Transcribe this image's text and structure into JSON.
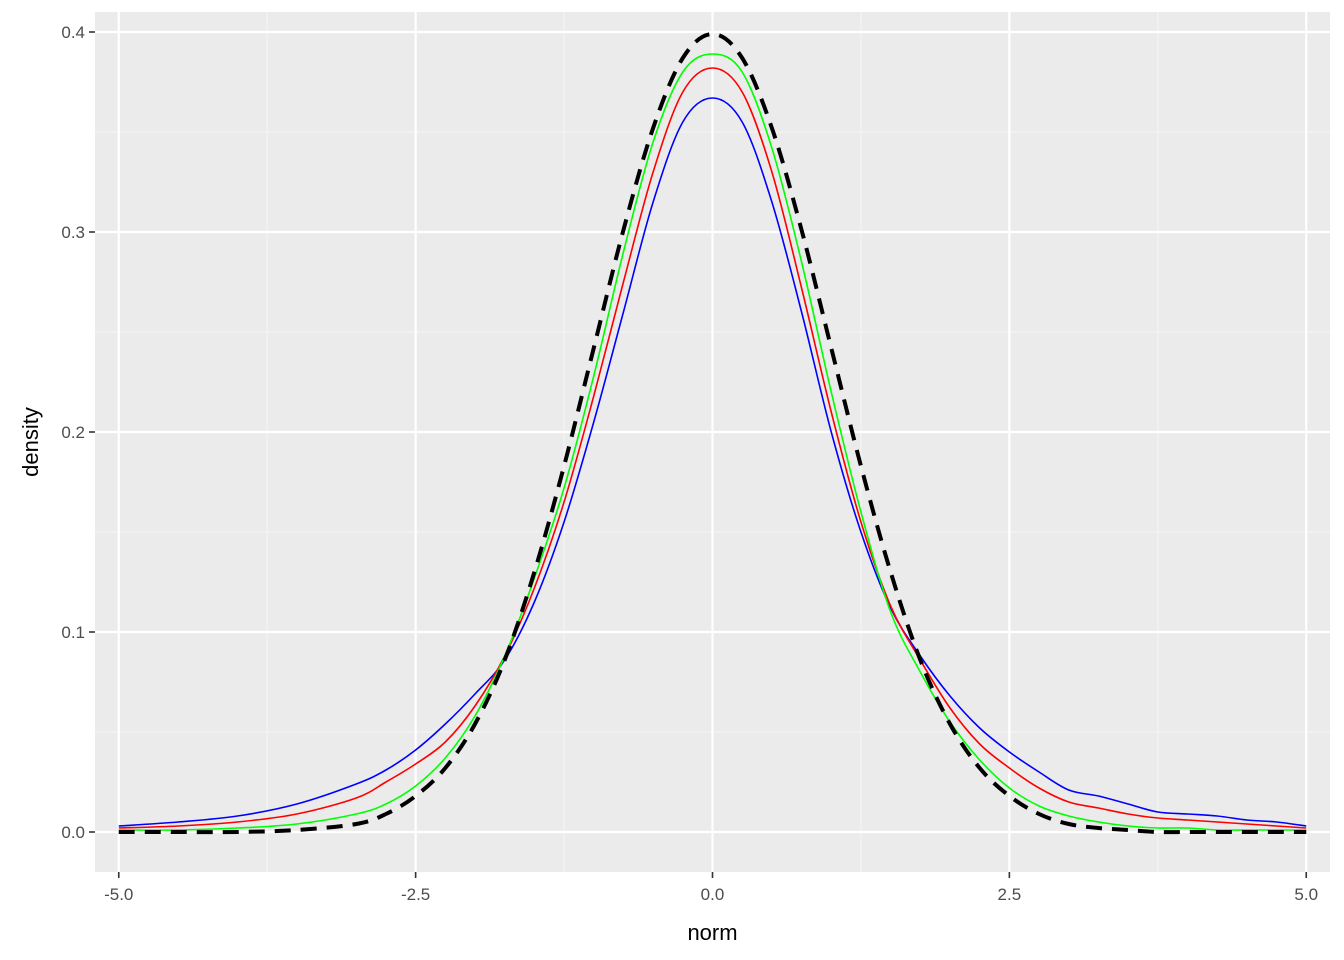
{
  "chart_data": {
    "type": "line",
    "title": "",
    "xlabel": "norm",
    "ylabel": "density",
    "xlim": [
      -5.2,
      5.2
    ],
    "ylim": [
      -0.02,
      0.41
    ],
    "grid": true,
    "legend": "none",
    "x_ticks": [
      -5.0,
      -2.5,
      0.0,
      2.5,
      5.0
    ],
    "x_tick_labels": [
      "-5.0",
      "-2.5",
      "0.0",
      "2.5",
      "5.0"
    ],
    "y_ticks": [
      0.0,
      0.1,
      0.2,
      0.3,
      0.4
    ],
    "y_tick_labels": [
      "0.0",
      "0.1",
      "0.2",
      "0.3",
      "0.4"
    ],
    "colors": {
      "panel_background": "#ebebeb",
      "grid_major": "#ffffff",
      "grid_minor": "#f5f5f5"
    },
    "series": [
      {
        "color": "#0000ff",
        "style": "solid",
        "x": [
          -5.0,
          -4.5,
          -4.0,
          -3.5,
          -3.0,
          -2.75,
          -2.5,
          -2.25,
          -2.0,
          -1.75,
          -1.5,
          -1.25,
          -1.0,
          -0.75,
          -0.5,
          -0.25,
          0.0,
          0.25,
          0.5,
          0.75,
          1.0,
          1.25,
          1.5,
          1.75,
          2.0,
          2.25,
          2.5,
          2.75,
          3.0,
          3.25,
          3.5,
          3.75,
          4.0,
          4.25,
          4.5,
          4.75,
          5.0
        ],
        "y": [
          0.003,
          0.005,
          0.008,
          0.014,
          0.024,
          0.031,
          0.041,
          0.054,
          0.069,
          0.086,
          0.115,
          0.155,
          0.205,
          0.26,
          0.315,
          0.355,
          0.367,
          0.355,
          0.315,
          0.26,
          0.2,
          0.15,
          0.112,
          0.088,
          0.068,
          0.052,
          0.04,
          0.03,
          0.021,
          0.018,
          0.014,
          0.01,
          0.009,
          0.008,
          0.006,
          0.005,
          0.003
        ]
      },
      {
        "color": "#ff0000",
        "style": "solid",
        "x": [
          -5.0,
          -4.5,
          -4.0,
          -3.5,
          -3.0,
          -2.75,
          -2.5,
          -2.25,
          -2.0,
          -1.75,
          -1.5,
          -1.25,
          -1.0,
          -0.75,
          -0.5,
          -0.25,
          0.0,
          0.25,
          0.5,
          0.75,
          1.0,
          1.25,
          1.5,
          1.75,
          2.0,
          2.25,
          2.5,
          2.75,
          3.0,
          3.25,
          3.5,
          3.75,
          4.0,
          4.25,
          4.5,
          4.75,
          5.0
        ],
        "y": [
          0.002,
          0.003,
          0.005,
          0.009,
          0.017,
          0.025,
          0.034,
          0.045,
          0.063,
          0.088,
          0.122,
          0.165,
          0.218,
          0.275,
          0.33,
          0.37,
          0.382,
          0.37,
          0.33,
          0.272,
          0.21,
          0.155,
          0.113,
          0.086,
          0.062,
          0.044,
          0.032,
          0.022,
          0.015,
          0.012,
          0.009,
          0.007,
          0.006,
          0.005,
          0.004,
          0.003,
          0.002
        ]
      },
      {
        "color": "#00ff00",
        "style": "solid",
        "x": [
          -5.0,
          -4.5,
          -4.0,
          -3.5,
          -3.0,
          -2.75,
          -2.5,
          -2.25,
          -2.0,
          -1.75,
          -1.5,
          -1.25,
          -1.0,
          -0.75,
          -0.5,
          -0.25,
          0.0,
          0.25,
          0.5,
          0.75,
          1.0,
          1.25,
          1.5,
          1.75,
          2.0,
          2.25,
          2.5,
          2.75,
          3.0,
          3.25,
          3.5,
          3.75,
          4.0,
          4.25,
          4.5,
          4.75,
          5.0
        ],
        "y": [
          0.001,
          0.001,
          0.002,
          0.004,
          0.009,
          0.014,
          0.023,
          0.037,
          0.058,
          0.088,
          0.127,
          0.172,
          0.228,
          0.29,
          0.345,
          0.38,
          0.389,
          0.38,
          0.342,
          0.285,
          0.22,
          0.16,
          0.11,
          0.08,
          0.055,
          0.036,
          0.022,
          0.013,
          0.008,
          0.005,
          0.003,
          0.002,
          0.002,
          0.001,
          0.001,
          0.001,
          0.001
        ]
      },
      {
        "color": "#000000",
        "style": "dashed",
        "x": [
          -5.0,
          -4.5,
          -4.0,
          -3.5,
          -3.0,
          -2.75,
          -2.5,
          -2.25,
          -2.0,
          -1.75,
          -1.5,
          -1.25,
          -1.0,
          -0.75,
          -0.5,
          -0.25,
          0.0,
          0.25,
          0.5,
          0.75,
          1.0,
          1.25,
          1.5,
          1.75,
          2.0,
          2.25,
          2.5,
          2.75,
          3.0,
          3.25,
          3.5,
          3.75,
          4.0,
          4.25,
          4.5,
          4.75,
          5.0
        ],
        "y": [
          0.0,
          0.0,
          0.0,
          0.001,
          0.004,
          0.009,
          0.018,
          0.032,
          0.054,
          0.086,
          0.13,
          0.183,
          0.242,
          0.301,
          0.352,
          0.387,
          0.399,
          0.387,
          0.352,
          0.301,
          0.242,
          0.183,
          0.13,
          0.086,
          0.054,
          0.032,
          0.018,
          0.009,
          0.004,
          0.002,
          0.001,
          0.0,
          0.0,
          0.0,
          0.0,
          0.0,
          0.0
        ]
      }
    ]
  }
}
